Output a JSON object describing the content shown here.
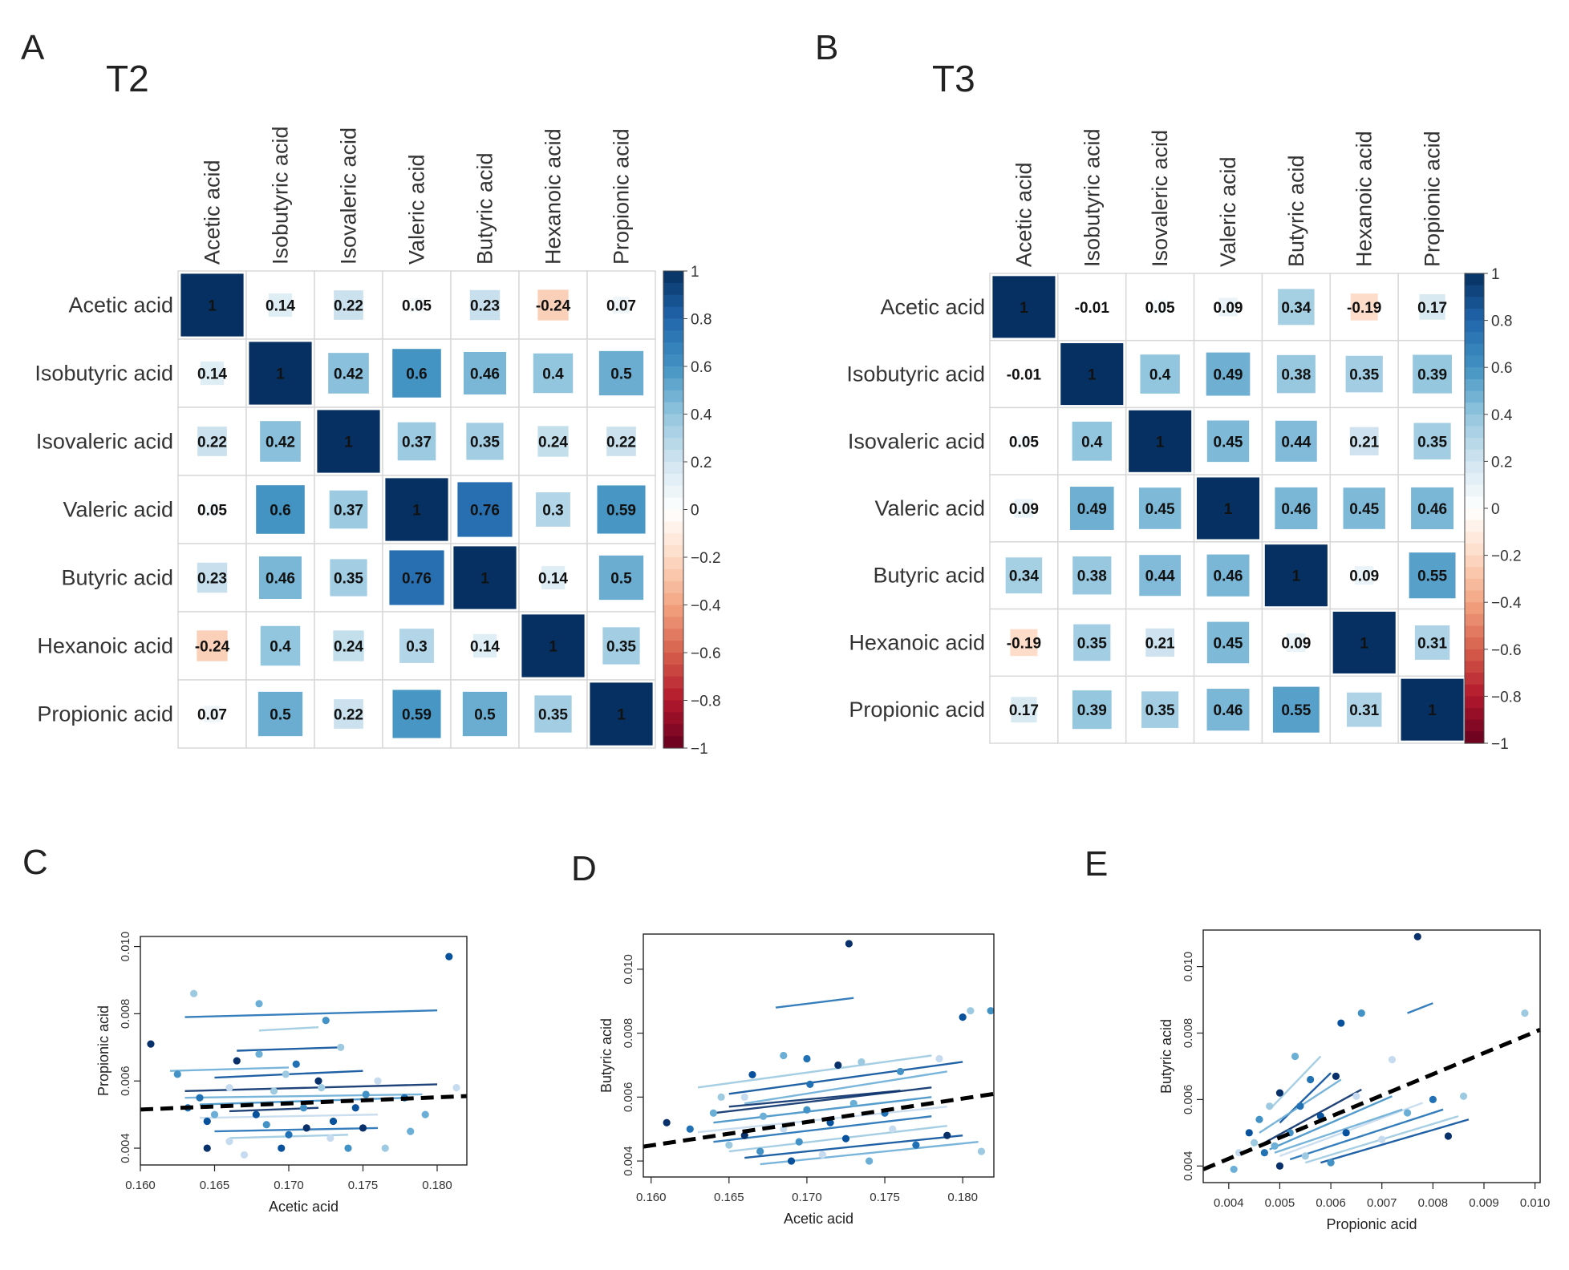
{
  "panel_letters": [
    "A",
    "B",
    "C",
    "D",
    "E"
  ],
  "colors": {
    "pos": "#053061",
    "neutral": "#ffffff",
    "neg": "#67001f",
    "grid": "#dddddd",
    "fit": "#000000"
  },
  "chart_data": [
    {
      "type": "heatmap",
      "panel": "A",
      "title": "T2",
      "labels": [
        "Acetic acid",
        "Isobutyric acid",
        "Isovaleric acid",
        "Valeric acid",
        "Butyric acid",
        "Hexanoic acid",
        "Propionic acid"
      ],
      "matrix": [
        [
          1,
          0.14,
          0.22,
          0.05,
          0.23,
          -0.24,
          0.07
        ],
        [
          0.14,
          1,
          0.42,
          0.6,
          0.46,
          0.4,
          0.5
        ],
        [
          0.22,
          0.42,
          1,
          0.37,
          0.35,
          0.24,
          0.22
        ],
        [
          0.05,
          0.6,
          0.37,
          1,
          0.76,
          0.3,
          0.59
        ],
        [
          0.23,
          0.46,
          0.35,
          0.76,
          1,
          0.14,
          0.5
        ],
        [
          -0.24,
          0.4,
          0.24,
          0.3,
          0.14,
          1,
          0.35
        ],
        [
          0.07,
          0.5,
          0.22,
          0.59,
          0.5,
          0.35,
          1
        ]
      ],
      "colorbar_ticks": [
        "1",
        "0.8",
        "0.6",
        "0.4",
        "0.2",
        "0",
        "−0.2",
        "−0.4",
        "−0.6",
        "−0.8",
        "−1"
      ]
    },
    {
      "type": "heatmap",
      "panel": "B",
      "title": "T3",
      "labels": [
        "Acetic acid",
        "Isobutyric acid",
        "Isovaleric acid",
        "Valeric acid",
        "Butyric acid",
        "Hexanoic acid",
        "Propionic acid"
      ],
      "matrix": [
        [
          1,
          -0.01,
          0.05,
          0.09,
          0.34,
          -0.19,
          0.17
        ],
        [
          -0.01,
          1,
          0.4,
          0.49,
          0.38,
          0.35,
          0.39
        ],
        [
          0.05,
          0.4,
          1,
          0.45,
          0.44,
          0.21,
          0.35
        ],
        [
          0.09,
          0.49,
          0.45,
          1,
          0.46,
          0.45,
          0.46
        ],
        [
          0.34,
          0.38,
          0.44,
          0.46,
          1,
          0.09,
          0.55
        ],
        [
          -0.19,
          0.35,
          0.21,
          0.45,
          0.09,
          1,
          0.31
        ],
        [
          0.17,
          0.39,
          0.35,
          0.46,
          0.55,
          0.31,
          1
        ]
      ],
      "colorbar_ticks": [
        "1",
        "0.8",
        "0.6",
        "0.4",
        "0.2",
        "0",
        "−0.2",
        "−0.4",
        "−0.6",
        "−0.8",
        "−1"
      ]
    },
    {
      "type": "scatter",
      "panel": "C",
      "xlabel": "Acetic acid",
      "ylabel": "Propionic acid",
      "xlim": [
        0.16,
        0.182
      ],
      "ylim": [
        0.0035,
        0.0103
      ],
      "xticks": [
        "0.160",
        "0.165",
        "0.170",
        "0.175",
        "0.180"
      ],
      "yticks": [
        "0.004",
        "0.006",
        "0.008",
        "0.010"
      ],
      "points": [
        [
          0.1607,
          0.0071
        ],
        [
          0.1636,
          0.0086
        ],
        [
          0.1625,
          0.0062
        ],
        [
          0.1645,
          0.0048
        ],
        [
          0.166,
          0.0042
        ],
        [
          0.168,
          0.0083
        ],
        [
          0.1705,
          0.0065
        ],
        [
          0.172,
          0.006
        ],
        [
          0.1735,
          0.007
        ],
        [
          0.1725,
          0.0078
        ],
        [
          0.1808,
          0.0097
        ],
        [
          0.1813,
          0.0058
        ],
        [
          0.1792,
          0.005
        ],
        [
          0.1778,
          0.0055
        ],
        [
          0.175,
          0.0046
        ],
        [
          0.1765,
          0.004
        ],
        [
          0.174,
          0.004
        ],
        [
          0.1695,
          0.004
        ],
        [
          0.167,
          0.0038
        ],
        [
          0.165,
          0.005
        ],
        [
          0.164,
          0.0055
        ],
        [
          0.1665,
          0.0066
        ],
        [
          0.169,
          0.0057
        ],
        [
          0.171,
          0.0052
        ],
        [
          0.173,
          0.0048
        ],
        [
          0.176,
          0.006
        ],
        [
          0.168,
          0.0068
        ],
        [
          0.17,
          0.0044
        ],
        [
          0.1645,
          0.004
        ],
        [
          0.1722,
          0.0058
        ],
        [
          0.1685,
          0.0047
        ],
        [
          0.1745,
          0.0052
        ],
        [
          0.166,
          0.0058
        ],
        [
          0.1782,
          0.0045
        ],
        [
          0.1632,
          0.0052
        ],
        [
          0.1712,
          0.0046
        ],
        [
          0.1698,
          0.0062
        ],
        [
          0.1752,
          0.0056
        ],
        [
          0.1678,
          0.005
        ],
        [
          0.1728,
          0.0043
        ]
      ],
      "segments": [
        [
          0.163,
          0.0079,
          0.18,
          0.0081
        ],
        [
          0.168,
          0.0075,
          0.172,
          0.0076
        ],
        [
          0.1665,
          0.0069,
          0.1735,
          0.007
        ],
        [
          0.162,
          0.0063,
          0.17,
          0.0064
        ],
        [
          0.163,
          0.0057,
          0.18,
          0.0059
        ],
        [
          0.164,
          0.0053,
          0.178,
          0.0055
        ],
        [
          0.164,
          0.0049,
          0.176,
          0.005
        ],
        [
          0.165,
          0.0045,
          0.176,
          0.0046
        ],
        [
          0.166,
          0.0043,
          0.174,
          0.0044
        ],
        [
          0.165,
          0.0061,
          0.175,
          0.0063
        ],
        [
          0.163,
          0.0055,
          0.179,
          0.0056
        ],
        [
          0.166,
          0.0051,
          0.172,
          0.0052
        ]
      ],
      "fit": [
        [
          0.16,
          0.00515
        ],
        [
          0.182,
          0.00555
        ]
      ]
    },
    {
      "type": "scatter",
      "panel": "D",
      "xlabel": "Acetic acid",
      "ylabel": "Butyric acid",
      "xlim": [
        0.1595,
        0.182
      ],
      "ylim": [
        0.0035,
        0.0111
      ],
      "xticks": [
        "0.160",
        "0.165",
        "0.170",
        "0.175",
        "0.180"
      ],
      "yticks": [
        "0.004",
        "0.006",
        "0.008",
        "0.010"
      ],
      "points": [
        [
          0.1727,
          0.0108
        ],
        [
          0.1805,
          0.0087
        ],
        [
          0.1818,
          0.0087
        ],
        [
          0.18,
          0.0085
        ],
        [
          0.1785,
          0.0072
        ],
        [
          0.1685,
          0.0073
        ],
        [
          0.17,
          0.0072
        ],
        [
          0.172,
          0.007
        ],
        [
          0.1735,
          0.0071
        ],
        [
          0.176,
          0.0068
        ],
        [
          0.1665,
          0.0067
        ],
        [
          0.166,
          0.006
        ],
        [
          0.164,
          0.0055
        ],
        [
          0.1625,
          0.005
        ],
        [
          0.161,
          0.0052
        ],
        [
          0.165,
          0.0045
        ],
        [
          0.167,
          0.0043
        ],
        [
          0.169,
          0.004
        ],
        [
          0.171,
          0.0042
        ],
        [
          0.174,
          0.004
        ],
        [
          0.177,
          0.0045
        ],
        [
          0.179,
          0.0048
        ],
        [
          0.1812,
          0.0043
        ],
        [
          0.17,
          0.0056
        ],
        [
          0.1715,
          0.0052
        ],
        [
          0.1685,
          0.005
        ],
        [
          0.173,
          0.0058
        ],
        [
          0.175,
          0.0055
        ],
        [
          0.166,
          0.0048
        ],
        [
          0.1645,
          0.006
        ],
        [
          0.1695,
          0.0046
        ],
        [
          0.1725,
          0.0047
        ],
        [
          0.1755,
          0.005
        ],
        [
          0.1672,
          0.0054
        ],
        [
          0.1702,
          0.0064
        ]
      ],
      "segments": [
        [
          0.168,
          0.0088,
          0.173,
          0.0091
        ],
        [
          0.163,
          0.0063,
          0.178,
          0.0073
        ],
        [
          0.165,
          0.0061,
          0.18,
          0.0071
        ],
        [
          0.166,
          0.0058,
          0.179,
          0.0068
        ],
        [
          0.164,
          0.0055,
          0.178,
          0.0063
        ],
        [
          0.164,
          0.0052,
          0.178,
          0.006
        ],
        [
          0.163,
          0.0049,
          0.179,
          0.0057
        ],
        [
          0.164,
          0.0046,
          0.178,
          0.0054
        ],
        [
          0.165,
          0.0043,
          0.179,
          0.0051
        ],
        [
          0.166,
          0.0041,
          0.18,
          0.0048
        ],
        [
          0.167,
          0.0039,
          0.181,
          0.0046
        ],
        [
          0.165,
          0.0057,
          0.176,
          0.0062
        ]
      ],
      "fit": [
        [
          0.1595,
          0.00445
        ],
        [
          0.182,
          0.0061
        ]
      ]
    },
    {
      "type": "scatter",
      "panel": "E",
      "xlabel": "Propionic acid",
      "ylabel": "Butyric acid",
      "xlim": [
        0.0035,
        0.0101
      ],
      "ylim": [
        0.0035,
        0.0111
      ],
      "xticks": [
        "0.004",
        "0.005",
        "0.006",
        "0.007",
        "0.008",
        "0.009",
        "0.010"
      ],
      "yticks": [
        "0.004",
        "0.006",
        "0.008",
        "0.010"
      ],
      "points": [
        [
          0.0077,
          0.0109
        ],
        [
          0.0098,
          0.0086
        ],
        [
          0.0066,
          0.0086
        ],
        [
          0.0062,
          0.0083
        ],
        [
          0.0072,
          0.0072
        ],
        [
          0.0053,
          0.0073
        ],
        [
          0.0056,
          0.0066
        ],
        [
          0.005,
          0.0062
        ],
        [
          0.0048,
          0.0058
        ],
        [
          0.0046,
          0.0054
        ],
        [
          0.0044,
          0.005
        ],
        [
          0.0042,
          0.0044
        ],
        [
          0.0041,
          0.0039
        ],
        [
          0.0047,
          0.0044
        ],
        [
          0.005,
          0.004
        ],
        [
          0.0055,
          0.0043
        ],
        [
          0.006,
          0.0041
        ],
        [
          0.0063,
          0.005
        ],
        [
          0.007,
          0.0048
        ],
        [
          0.0075,
          0.0056
        ],
        [
          0.008,
          0.006
        ],
        [
          0.0083,
          0.0049
        ],
        [
          0.0086,
          0.0061
        ],
        [
          0.0052,
          0.005
        ],
        [
          0.0058,
          0.0055
        ],
        [
          0.0065,
          0.0061
        ],
        [
          0.0049,
          0.0046
        ],
        [
          0.0054,
          0.0058
        ],
        [
          0.0061,
          0.0067
        ],
        [
          0.0045,
          0.0047
        ]
      ],
      "segments": [
        [
          0.0075,
          0.0086,
          0.008,
          0.0089
        ],
        [
          0.0048,
          0.0057,
          0.0058,
          0.0073
        ],
        [
          0.005,
          0.0053,
          0.006,
          0.0068
        ],
        [
          0.0046,
          0.005,
          0.0062,
          0.0066
        ],
        [
          0.0047,
          0.0047,
          0.0066,
          0.0063
        ],
        [
          0.0048,
          0.0045,
          0.0072,
          0.0061
        ],
        [
          0.005,
          0.0043,
          0.0078,
          0.0059
        ],
        [
          0.0052,
          0.0042,
          0.0082,
          0.0057
        ],
        [
          0.0055,
          0.0041,
          0.0085,
          0.0055
        ],
        [
          0.0058,
          0.0041,
          0.0087,
          0.0054
        ],
        [
          0.0049,
          0.0044,
          0.0074,
          0.0057
        ]
      ],
      "fit": [
        [
          0.0035,
          0.0039
        ],
        [
          0.0101,
          0.0081
        ]
      ]
    }
  ]
}
